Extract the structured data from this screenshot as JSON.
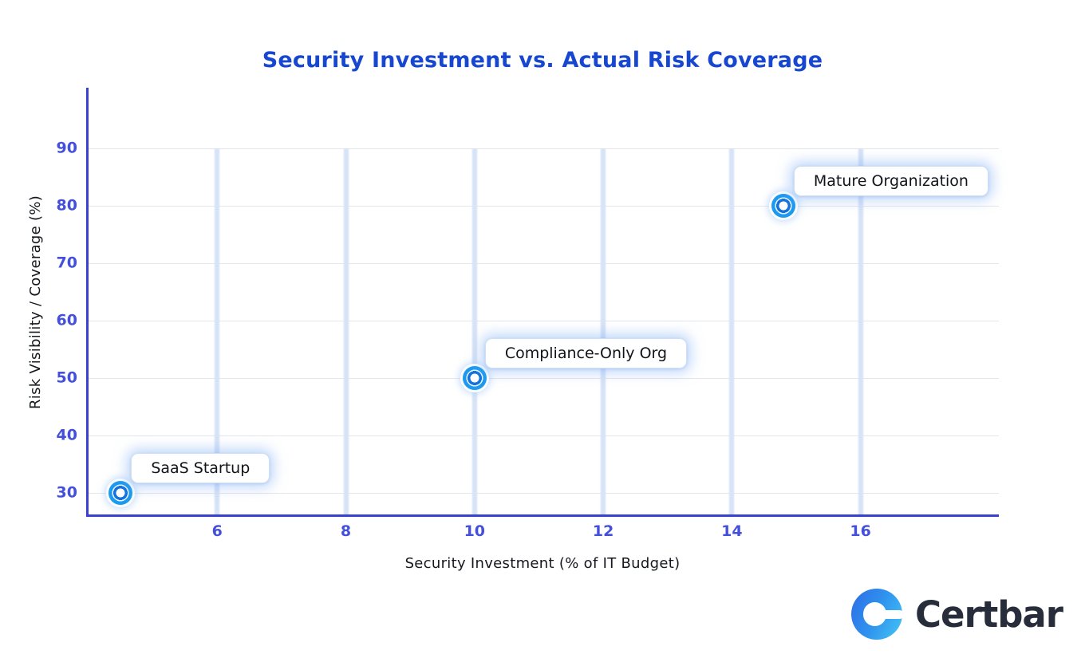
{
  "page": {
    "background": "#ffffff"
  },
  "chart_data": {
    "type": "scatter",
    "title": "Security Investment vs. Actual Risk Coverage",
    "xlabel": "Security Investment (% of IT Budget)",
    "ylabel": "Risk Visibility / Coverage (%)",
    "xlim": [
      4,
      18.15
    ],
    "ylim": [
      26.3,
      100.6
    ],
    "x_ticks": [
      "6",
      "8",
      "10",
      "12",
      "14",
      "16"
    ],
    "y_ticks": [
      "30",
      "40",
      "50",
      "60",
      "70",
      "80",
      "90"
    ],
    "grid": true,
    "legend": false,
    "points": [
      {
        "id": "saas-startup",
        "label": "SaaS Startup",
        "x": 4.5,
        "y": 30
      },
      {
        "id": "compliance-only-org",
        "label": "Compliance-Only Org",
        "x": 10,
        "y": 50
      },
      {
        "id": "mature-organization",
        "label": "Mature Organization",
        "x": 14.8,
        "y": 80
      }
    ]
  },
  "colors": {
    "title": "#1747d0",
    "tick": "#4450dc",
    "axis": "#3a40cf",
    "grid_line": "#e5e6eb",
    "band": "#d7e3f6",
    "marker_outer": "#1b9af0",
    "marker_inner": "#1273dd",
    "annotation_border": "#cfe0f4",
    "annotation_text": "#101318",
    "axis_title": "#15181e",
    "brand_text": "#272d3b",
    "logo_blue_dark": "#2e6be6",
    "logo_blue_light": "#45c6f5"
  },
  "brand": {
    "name": "Certbar",
    "logo_icon": "certbar-c-mark"
  }
}
